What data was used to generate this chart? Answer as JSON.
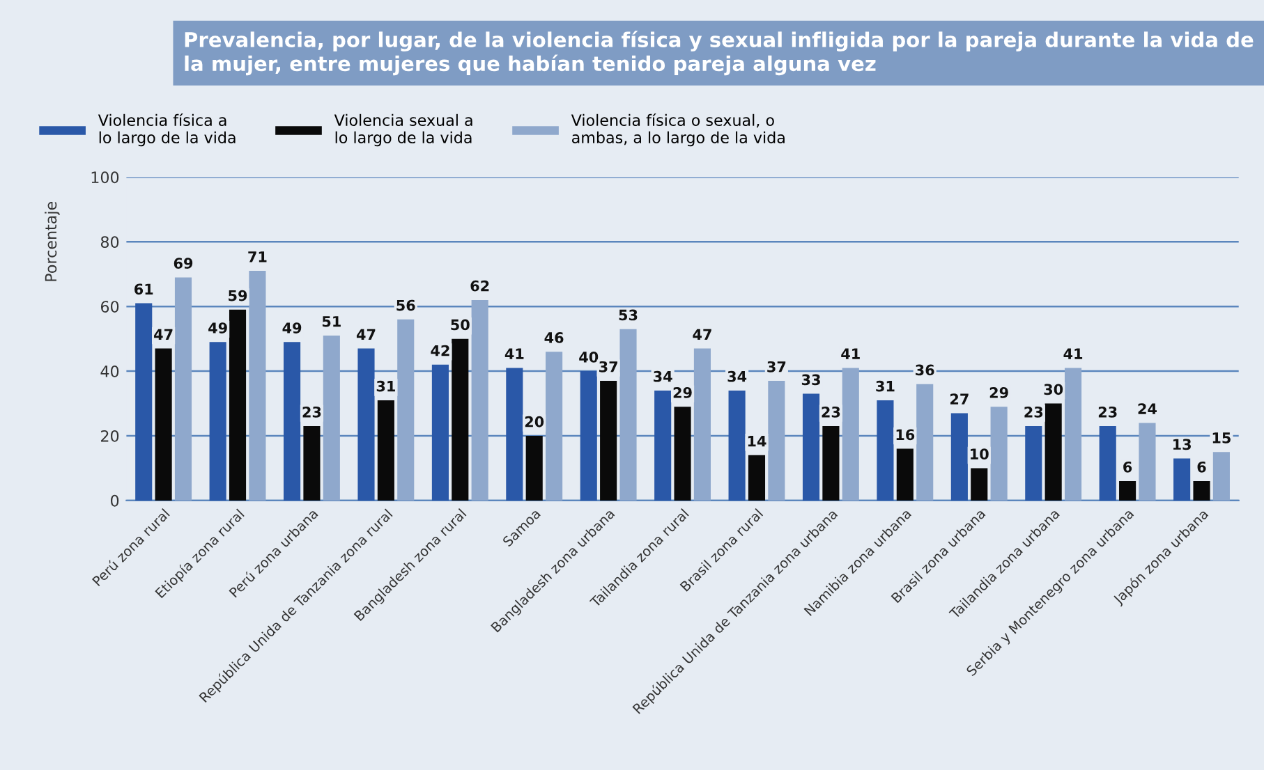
{
  "chart_data": {
    "type": "bar",
    "title": "Prevalencia, por lugar, de la violencia física y sexual infligida por la pareja durante la vida de la mujer, entre mujeres que habían tenido pareja alguna vez",
    "ylabel": "Porcentaje",
    "categories": [
      "Perú zona rural",
      "Etiopía zona rural",
      "Perú zona urbana",
      "República Unida de Tanzania zona rural",
      "Bangladesh zona rural",
      "Samoa",
      "Bangladesh zona urbana",
      "Tailandia zona rural",
      "Brasil zona rural",
      "República Unida de Tanzania zona urbana",
      "Namibia zona urbana",
      "Brasil zona urbana",
      "Tailandia zona urbana",
      "Serbia y Montenegro zona urbana",
      "Japón zona urbana"
    ],
    "series": [
      {
        "name": "Violencia física a\nlo largo de la vida",
        "color": "#2a58a8",
        "values": [
          61,
          49,
          49,
          47,
          42,
          41,
          40,
          34,
          34,
          33,
          31,
          27,
          23,
          23,
          13
        ]
      },
      {
        "name": "Violencia sexual a\nlo largo de la vida",
        "color": "#0a0a0a",
        "values": [
          47,
          59,
          23,
          31,
          50,
          20,
          37,
          29,
          14,
          23,
          16,
          10,
          30,
          6,
          6
        ]
      },
      {
        "name": "Violencia física o sexual, o\nambas, a lo largo de la vida",
        "color": "#8fa8cc",
        "values": [
          69,
          71,
          51,
          56,
          62,
          46,
          53,
          47,
          37,
          41,
          36,
          29,
          41,
          24,
          15
        ]
      }
    ],
    "ylim": [
      0,
      100
    ],
    "yticks": [
      0,
      20,
      40,
      60,
      80,
      100
    ],
    "grid": "y",
    "legend": "top left",
    "data_labels": true
  }
}
